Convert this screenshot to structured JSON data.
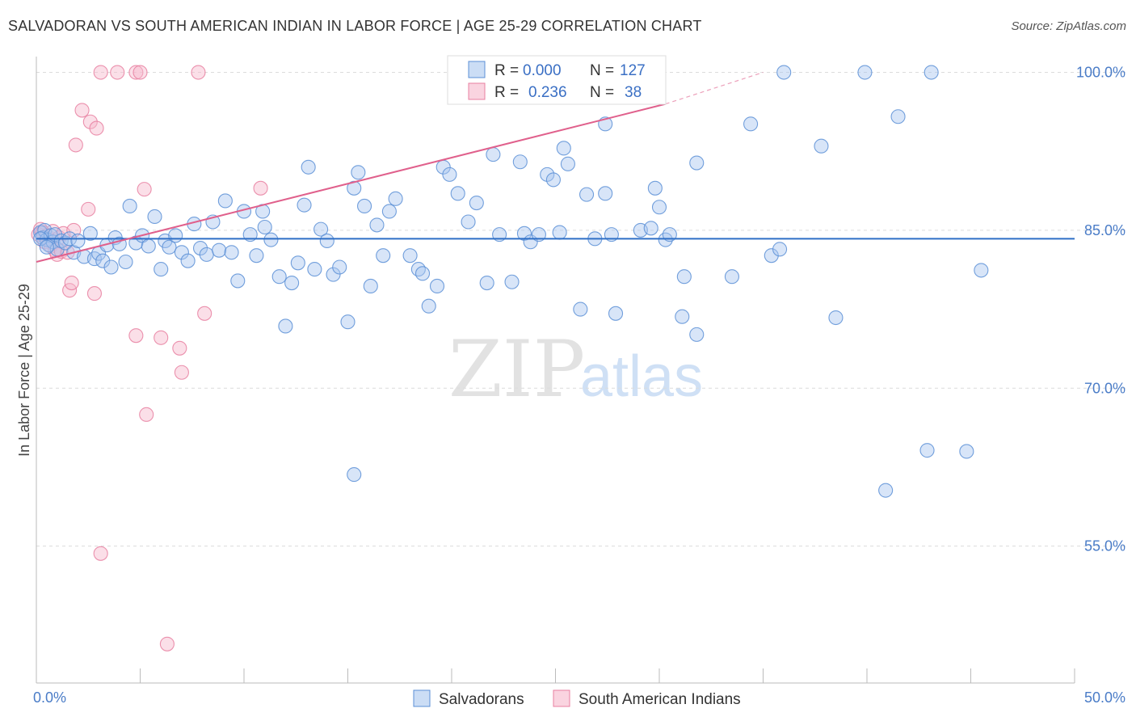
{
  "title": "SALVADORAN VS SOUTH AMERICAN INDIAN IN LABOR FORCE | AGE 25-29 CORRELATION CHART",
  "source": "Source: ZipAtlas.com",
  "watermark": {
    "zip": "ZIP",
    "atlas": "atlas"
  },
  "colors": {
    "blue_fill": "#a8c6ef",
    "blue_stroke": "#5b8fd6",
    "blue_line": "#2f6fc6",
    "pink_fill": "#f6b8cb",
    "pink_stroke": "#e87fa0",
    "pink_line": "#e0608c",
    "tick_label": "#4a7cc7"
  },
  "legend": {
    "rows": [
      {
        "r_label": "R =",
        "r_value": "0.000",
        "n_label": "N =",
        "n_value": "127"
      },
      {
        "r_label": "R =",
        "r_value": "0.236",
        "n_label": "N =",
        "n_value": "38"
      }
    ]
  },
  "bottom_legend": [
    "Salvadorans",
    "South American Indians"
  ],
  "chart_data": {
    "type": "scatter",
    "title": "SALVADORAN VS SOUTH AMERICAN INDIAN IN LABOR FORCE | AGE 25-29 CORRELATION CHART",
    "xlabel": "",
    "ylabel": "In Labor Force | Age 25-29",
    "x_tick_labels": [
      "0.0%",
      "50.0%"
    ],
    "y_tick_labels": [
      "100.0%",
      "85.0%",
      "70.0%",
      "55.0%"
    ],
    "y_ticks": [
      100,
      85,
      70,
      55
    ],
    "xlim": [
      0,
      50
    ],
    "ylim": [
      42,
      101.5
    ],
    "grid": true,
    "series": [
      {
        "name": "Salvadorans",
        "R": 0.0,
        "N": 127,
        "trend": {
          "x": [
            0,
            50
          ],
          "y": [
            84.2,
            84.2
          ]
        },
        "points": [
          [
            0.2,
            84.8
          ],
          [
            0.3,
            84.3
          ],
          [
            0.4,
            85.0
          ],
          [
            0.5,
            84.1
          ],
          [
            0.6,
            83.6
          ],
          [
            0.7,
            84.5
          ],
          [
            0.8,
            83.9
          ],
          [
            0.9,
            84.6
          ],
          [
            1.0,
            83.2
          ],
          [
            1.2,
            84.0
          ],
          [
            1.4,
            83.8
          ],
          [
            1.6,
            84.2
          ],
          [
            1.8,
            82.9
          ],
          [
            2.0,
            84.0
          ],
          [
            2.3,
            82.5
          ],
          [
            2.6,
            84.7
          ],
          [
            2.8,
            82.3
          ],
          [
            3.0,
            82.8
          ],
          [
            3.2,
            82.1
          ],
          [
            3.4,
            83.6
          ],
          [
            3.6,
            81.5
          ],
          [
            3.8,
            84.3
          ],
          [
            4.0,
            83.7
          ],
          [
            4.3,
            82.0
          ],
          [
            4.5,
            87.3
          ],
          [
            4.8,
            83.8
          ],
          [
            5.1,
            84.5
          ],
          [
            5.4,
            83.5
          ],
          [
            5.7,
            86.3
          ],
          [
            6.0,
            81.3
          ],
          [
            6.2,
            84.0
          ],
          [
            6.4,
            83.4
          ],
          [
            6.7,
            84.5
          ],
          [
            7.0,
            82.9
          ],
          [
            7.3,
            82.1
          ],
          [
            7.6,
            85.6
          ],
          [
            7.9,
            83.3
          ],
          [
            8.2,
            82.7
          ],
          [
            8.5,
            85.8
          ],
          [
            8.8,
            83.1
          ],
          [
            9.1,
            87.8
          ],
          [
            9.4,
            82.9
          ],
          [
            9.7,
            80.2
          ],
          [
            10.0,
            86.8
          ],
          [
            10.3,
            84.6
          ],
          [
            10.6,
            82.6
          ],
          [
            10.9,
            86.8
          ],
          [
            11.0,
            85.3
          ],
          [
            11.3,
            84.1
          ],
          [
            11.7,
            80.6
          ],
          [
            12.0,
            75.9
          ],
          [
            12.3,
            80.0
          ],
          [
            12.6,
            81.9
          ],
          [
            12.9,
            87.4
          ],
          [
            13.1,
            91.0
          ],
          [
            13.4,
            81.3
          ],
          [
            13.7,
            85.1
          ],
          [
            14.0,
            84.0
          ],
          [
            14.3,
            80.8
          ],
          [
            14.6,
            81.5
          ],
          [
            15.0,
            76.3
          ],
          [
            15.3,
            89.0
          ],
          [
            15.5,
            90.5
          ],
          [
            15.8,
            87.3
          ],
          [
            16.1,
            79.7
          ],
          [
            16.4,
            85.5
          ],
          [
            16.7,
            82.6
          ],
          [
            17.0,
            86.8
          ],
          [
            17.3,
            88.0
          ],
          [
            18.0,
            82.6
          ],
          [
            18.4,
            81.3
          ],
          [
            18.6,
            80.9
          ],
          [
            18.9,
            77.8
          ],
          [
            19.3,
            79.7
          ],
          [
            19.6,
            91.0
          ],
          [
            19.9,
            90.3
          ],
          [
            20.3,
            88.5
          ],
          [
            20.8,
            85.8
          ],
          [
            21.2,
            87.6
          ],
          [
            21.7,
            80.0
          ],
          [
            22.0,
            92.2
          ],
          [
            22.3,
            84.6
          ],
          [
            22.7,
            99.9
          ],
          [
            22.9,
            80.1
          ],
          [
            23.3,
            91.5
          ],
          [
            23.5,
            84.7
          ],
          [
            23.8,
            83.9
          ],
          [
            24.2,
            84.6
          ],
          [
            24.6,
            90.3
          ],
          [
            24.9,
            89.8
          ],
          [
            25.2,
            84.8
          ],
          [
            25.4,
            92.8
          ],
          [
            25.6,
            91.3
          ],
          [
            26.2,
            77.5
          ],
          [
            26.5,
            88.4
          ],
          [
            26.9,
            84.2
          ],
          [
            27.4,
            95.1
          ],
          [
            27.4,
            88.5
          ],
          [
            27.7,
            84.6
          ],
          [
            27.9,
            77.1
          ],
          [
            29.1,
            85.0
          ],
          [
            29.6,
            85.2
          ],
          [
            29.8,
            89.0
          ],
          [
            30.0,
            87.2
          ],
          [
            30.3,
            84.1
          ],
          [
            30.5,
            84.6
          ],
          [
            31.1,
            76.8
          ],
          [
            31.2,
            80.6
          ],
          [
            31.8,
            91.4
          ],
          [
            31.8,
            75.1
          ],
          [
            33.5,
            80.6
          ],
          [
            34.4,
            95.1
          ],
          [
            35.4,
            82.6
          ],
          [
            35.8,
            83.2
          ],
          [
            37.8,
            93.0
          ],
          [
            38.5,
            76.7
          ],
          [
            36.0,
            100.0
          ],
          [
            39.9,
            100.0
          ],
          [
            41.5,
            95.8
          ],
          [
            42.9,
            64.1
          ],
          [
            44.8,
            64.0
          ],
          [
            45.5,
            81.2
          ],
          [
            43.1,
            100.0
          ],
          [
            15.3,
            61.8
          ],
          [
            40.9,
            60.3
          ],
          [
            0.2,
            84.2
          ],
          [
            0.5,
            83.4
          ]
        ]
      },
      {
        "name": "South American Indians",
        "R": 0.236,
        "N": 38,
        "trend": {
          "x": [
            0,
            30.3
          ],
          "y": [
            82.0,
            97.0
          ]
        },
        "trend_dashed": {
          "x": [
            30.3,
            35.0
          ],
          "y": [
            97.0,
            100.0
          ]
        },
        "points": [
          [
            0.1,
            84.6
          ],
          [
            0.2,
            85.1
          ],
          [
            0.3,
            84.8
          ],
          [
            0.4,
            83.9
          ],
          [
            0.5,
            84.5
          ],
          [
            0.6,
            84.1
          ],
          [
            0.7,
            83.5
          ],
          [
            0.8,
            84.9
          ],
          [
            0.9,
            83.1
          ],
          [
            1.0,
            82.7
          ],
          [
            1.1,
            84.3
          ],
          [
            1.2,
            83.0
          ],
          [
            1.3,
            84.7
          ],
          [
            1.5,
            82.9
          ],
          [
            1.6,
            79.3
          ],
          [
            1.7,
            80.0
          ],
          [
            1.8,
            85.0
          ],
          [
            1.9,
            93.1
          ],
          [
            2.2,
            96.4
          ],
          [
            2.5,
            87.0
          ],
          [
            2.6,
            95.3
          ],
          [
            2.8,
            79.0
          ],
          [
            2.9,
            94.7
          ],
          [
            3.1,
            100.0
          ],
          [
            3.9,
            100.0
          ],
          [
            4.8,
            100.0
          ],
          [
            5.0,
            100.0
          ],
          [
            5.2,
            88.9
          ],
          [
            5.3,
            67.5
          ],
          [
            4.8,
            75.0
          ],
          [
            6.0,
            74.8
          ],
          [
            6.3,
            45.7
          ],
          [
            6.9,
            73.8
          ],
          [
            7.0,
            71.5
          ],
          [
            7.8,
            100.0
          ],
          [
            8.1,
            77.1
          ],
          [
            10.8,
            89.0
          ],
          [
            3.1,
            54.3
          ]
        ]
      }
    ]
  }
}
